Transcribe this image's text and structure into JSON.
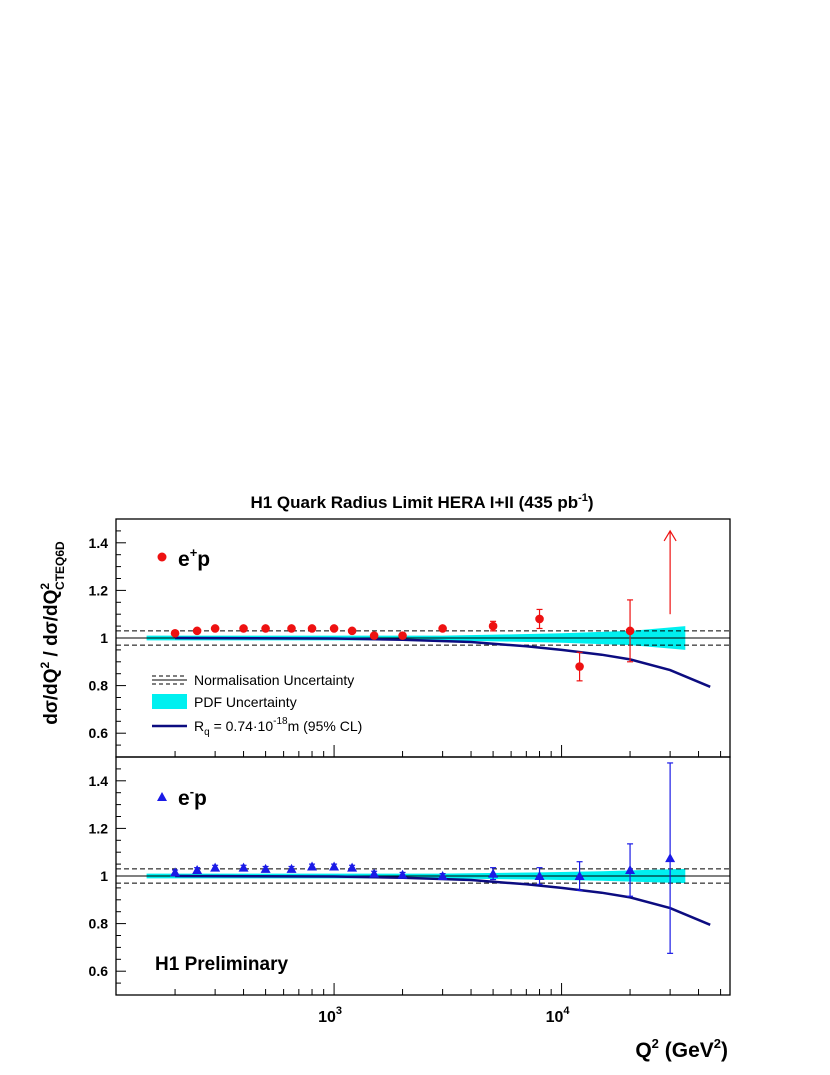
{
  "title": {
    "main": "H1 Quark Radius Limit HERA I+II (435 pb",
    "sup": "-1",
    "end": ")"
  },
  "ylabel": {
    "p1": "dσ/dQ",
    "s1": "2",
    "p2": " / dσ/dQ",
    "s2": "2",
    "sub": "CTEQ6D"
  },
  "xlabel": {
    "p1": "Q",
    "s1": "2",
    "p2": " (GeV",
    "s2": "2",
    "p3": ")"
  },
  "x_ticks": [
    {
      "base": "10",
      "exp": "3",
      "value": 1000
    },
    {
      "base": "10",
      "exp": "4",
      "value": 10000
    }
  ],
  "y_ticks": [
    "0.6",
    "0.8",
    "1",
    "1.2",
    "1.4"
  ],
  "legend": {
    "norm": "Normalisation Uncertainty",
    "pdf": "PDF Uncertainty",
    "rq_a": "R",
    "rq_sub": "q",
    "rq_b": " = 0.74·10",
    "rq_sup": "-18",
    "rq_c": "m (95% CL)"
  },
  "panel_labels": {
    "top": {
      "a": "e",
      "sup": "+",
      "b": "p"
    },
    "bottom": {
      "a": "e",
      "sup": "-",
      "b": "p"
    },
    "preliminary": "H1 Preliminary"
  },
  "colors": {
    "ep_plus": "#ee1111",
    "ep_minus": "#1a1ae6",
    "pdf_band": "#00f0f0",
    "rq_curve": "#0c0c80",
    "axis": "#000000"
  },
  "chart_data": {
    "type": "scatter",
    "x_scale": "log",
    "xlim": [
      110,
      55000
    ],
    "ylim": [
      0.5,
      1.5
    ],
    "norm_uncertainty": [
      0.97,
      1.03
    ],
    "panels": [
      {
        "name": "e+p",
        "marker": "circle",
        "points": [
          {
            "x": 200,
            "y": 1.02,
            "err": 0.01
          },
          {
            "x": 250,
            "y": 1.03,
            "err": 0.01
          },
          {
            "x": 300,
            "y": 1.04,
            "err": 0.01
          },
          {
            "x": 400,
            "y": 1.04,
            "err": 0.01
          },
          {
            "x": 500,
            "y": 1.04,
            "err": 0.01
          },
          {
            "x": 650,
            "y": 1.04,
            "err": 0.01
          },
          {
            "x": 800,
            "y": 1.04,
            "err": 0.01
          },
          {
            "x": 1000,
            "y": 1.04,
            "err": 0.01
          },
          {
            "x": 1200,
            "y": 1.03,
            "err": 0.01
          },
          {
            "x": 1500,
            "y": 1.01,
            "err": 0.01
          },
          {
            "x": 2000,
            "y": 1.01,
            "err": 0.01
          },
          {
            "x": 3000,
            "y": 1.04,
            "err": 0.01
          },
          {
            "x": 5000,
            "y": 1.05,
            "err": 0.02
          },
          {
            "x": 8000,
            "y": 1.08,
            "err": 0.04
          },
          {
            "x": 12000,
            "y": 0.88,
            "err": 0.06
          },
          {
            "x": 20000,
            "y": 1.03,
            "err": 0.13
          }
        ],
        "arrow": {
          "x": 30000,
          "y_from": 1.1,
          "y_to": 1.45
        },
        "pdf_band": [
          {
            "x": 150,
            "lo": 0.99,
            "hi": 1.01
          },
          {
            "x": 3000,
            "lo": 0.99,
            "hi": 1.01
          },
          {
            "x": 6000,
            "lo": 0.985,
            "hi": 1.015
          },
          {
            "x": 10000,
            "lo": 0.98,
            "hi": 1.02
          },
          {
            "x": 20000,
            "lo": 0.97,
            "hi": 1.03
          },
          {
            "x": 35000,
            "lo": 0.95,
            "hi": 1.05
          }
        ],
        "rq_curve": [
          {
            "x": 200,
            "y": 1.0
          },
          {
            "x": 1000,
            "y": 0.998
          },
          {
            "x": 2000,
            "y": 0.993
          },
          {
            "x": 4000,
            "y": 0.983
          },
          {
            "x": 7000,
            "y": 0.965
          },
          {
            "x": 10000,
            "y": 0.95
          },
          {
            "x": 15000,
            "y": 0.93
          },
          {
            "x": 20000,
            "y": 0.91
          },
          {
            "x": 30000,
            "y": 0.865
          },
          {
            "x": 45000,
            "y": 0.795
          }
        ]
      },
      {
        "name": "e-p",
        "marker": "triangle",
        "points": [
          {
            "x": 200,
            "y": 1.015,
            "err": 0.01
          },
          {
            "x": 250,
            "y": 1.025,
            "err": 0.01
          },
          {
            "x": 300,
            "y": 1.035,
            "err": 0.01
          },
          {
            "x": 400,
            "y": 1.035,
            "err": 0.01
          },
          {
            "x": 500,
            "y": 1.03,
            "err": 0.01
          },
          {
            "x": 650,
            "y": 1.03,
            "err": 0.01
          },
          {
            "x": 800,
            "y": 1.04,
            "err": 0.01
          },
          {
            "x": 1000,
            "y": 1.04,
            "err": 0.01
          },
          {
            "x": 1200,
            "y": 1.035,
            "err": 0.01
          },
          {
            "x": 1500,
            "y": 1.01,
            "err": 0.01
          },
          {
            "x": 2000,
            "y": 1.005,
            "err": 0.01
          },
          {
            "x": 3000,
            "y": 1.0,
            "err": 0.01
          },
          {
            "x": 5000,
            "y": 1.01,
            "err": 0.025
          },
          {
            "x": 8000,
            "y": 1.0,
            "err": 0.035
          },
          {
            "x": 12000,
            "y": 1.0,
            "err": 0.06
          },
          {
            "x": 20000,
            "y": 1.025,
            "err": 0.11
          },
          {
            "x": 30000,
            "y": 1.075,
            "err": 0.4
          }
        ],
        "pdf_band": [
          {
            "x": 150,
            "lo": 0.99,
            "hi": 1.01
          },
          {
            "x": 3000,
            "lo": 0.99,
            "hi": 1.01
          },
          {
            "x": 8000,
            "lo": 0.985,
            "hi": 1.015
          },
          {
            "x": 15000,
            "lo": 0.98,
            "hi": 1.02
          },
          {
            "x": 35000,
            "lo": 0.97,
            "hi": 1.03
          }
        ],
        "rq_curve": [
          {
            "x": 200,
            "y": 1.0
          },
          {
            "x": 1000,
            "y": 0.998
          },
          {
            "x": 2000,
            "y": 0.993
          },
          {
            "x": 4000,
            "y": 0.983
          },
          {
            "x": 7000,
            "y": 0.965
          },
          {
            "x": 10000,
            "y": 0.95
          },
          {
            "x": 15000,
            "y": 0.93
          },
          {
            "x": 20000,
            "y": 0.91
          },
          {
            "x": 30000,
            "y": 0.865
          },
          {
            "x": 45000,
            "y": 0.795
          }
        ]
      }
    ]
  }
}
